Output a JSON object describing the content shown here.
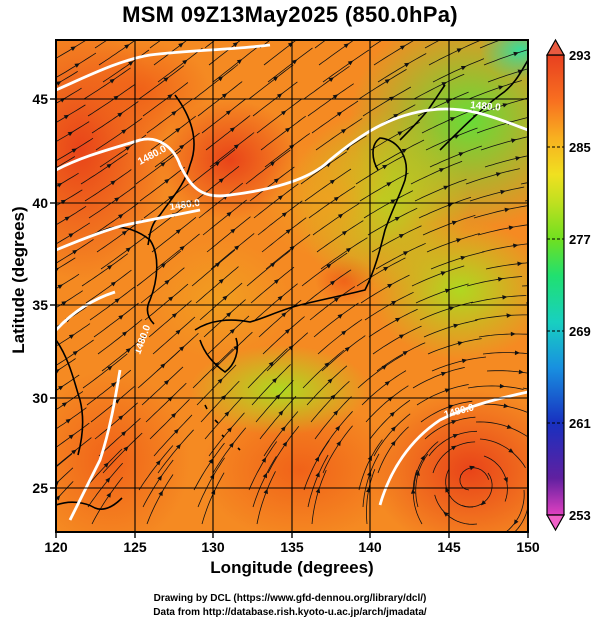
{
  "title": "MSM 09Z13May2025 (850.0hPa)",
  "x_axis": {
    "label": "Longitude (degrees)",
    "ticks": [
      "120",
      "125",
      "130",
      "135",
      "140",
      "145",
      "150"
    ]
  },
  "y_axis": {
    "label": "Latitude  (degrees)",
    "ticks": [
      "25",
      "30",
      "35",
      "40",
      "45"
    ]
  },
  "colorbar": {
    "ticks": [
      "293",
      "285",
      "277",
      "269",
      "261",
      "253"
    ],
    "min": 253,
    "max": 293,
    "colors": [
      "#e040c0",
      "#6020a0",
      "#1830c0",
      "#1890e0",
      "#18d0c0",
      "#20e070",
      "#70e020",
      "#c0e020",
      "#f0e020",
      "#f8b020",
      "#f87020",
      "#e84020"
    ]
  },
  "contour_labels": [
    "1480.0",
    "1480.0",
    "1480.0",
    "1480.0",
    "1480.0"
  ],
  "credits": {
    "line1": "Drawing by DCL (https://www.gfd-dennou.org/library/dcl/)",
    "line2": "Data from http://database.rish.kyoto-u.ac.jp/arch/jmadata/"
  },
  "chart_data": {
    "type": "map",
    "title": "MSM 09Z13May2025 (850.0hPa)",
    "xlabel": "Longitude (degrees)",
    "ylabel": "Latitude  (degrees)",
    "xlim": [
      120,
      150
    ],
    "ylim": [
      22.5,
      47.5
    ],
    "x_ticks": [
      120,
      125,
      130,
      135,
      140,
      145,
      150
    ],
    "y_ticks": [
      25,
      30,
      35,
      40,
      45
    ],
    "grid": true,
    "colorbar_range": [
      253,
      293
    ],
    "colorbar_ticks": [
      293,
      285,
      277,
      269,
      261,
      253
    ],
    "contour_level": 1480.0
  }
}
